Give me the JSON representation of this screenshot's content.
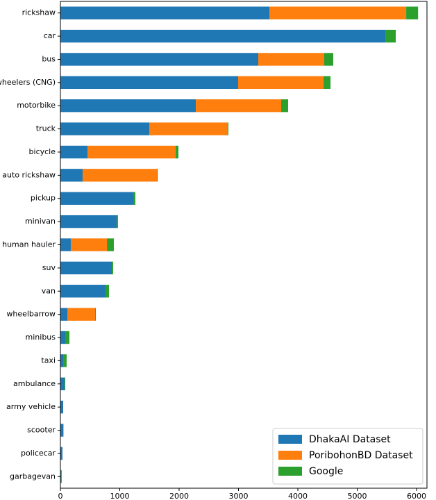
{
  "chart_data": {
    "type": "stacked-barh",
    "categories": [
      "rickshaw",
      "car",
      "bus",
      "wheelers (CNG)",
      "motorbike",
      "truck",
      "bicycle",
      "auto rickshaw",
      "pickup",
      "minivan",
      "human hauler",
      "suv",
      "van",
      "wheelbarrow",
      "minibus",
      "taxi",
      "ambulance",
      "army vehicle",
      "scooter",
      "policecar",
      "garbagevan"
    ],
    "series": [
      {
        "name": "DhakaAI Dataset",
        "color": "#1f77b4",
        "values": [
          3520,
          5474,
          3333,
          2994,
          2281,
          1497,
          456,
          374,
          1228,
          947,
          175,
          866,
          760,
          117,
          82,
          47,
          70,
          47,
          47,
          35,
          10
        ]
      },
      {
        "name": "PoribohonBD Dataset",
        "color": "#ff7f0e",
        "values": [
          2305,
          0,
          1111,
          1439,
          1438,
          1322,
          1486,
          1252,
          0,
          0,
          609,
          0,
          0,
          468,
          0,
          0,
          0,
          0,
          0,
          0,
          0
        ]
      },
      {
        "name": "Google",
        "color": "#2ca02c",
        "values": [
          200,
          175,
          152,
          117,
          117,
          11,
          46,
          12,
          35,
          23,
          116,
          23,
          59,
          12,
          70,
          58,
          12,
          0,
          5,
          0,
          12
        ]
      }
    ],
    "xlim": [
      0,
      6175
    ],
    "xticks": [
      0,
      1000,
      2000,
      3000,
      4000,
      5000,
      6000
    ],
    "legend": "lower right"
  }
}
